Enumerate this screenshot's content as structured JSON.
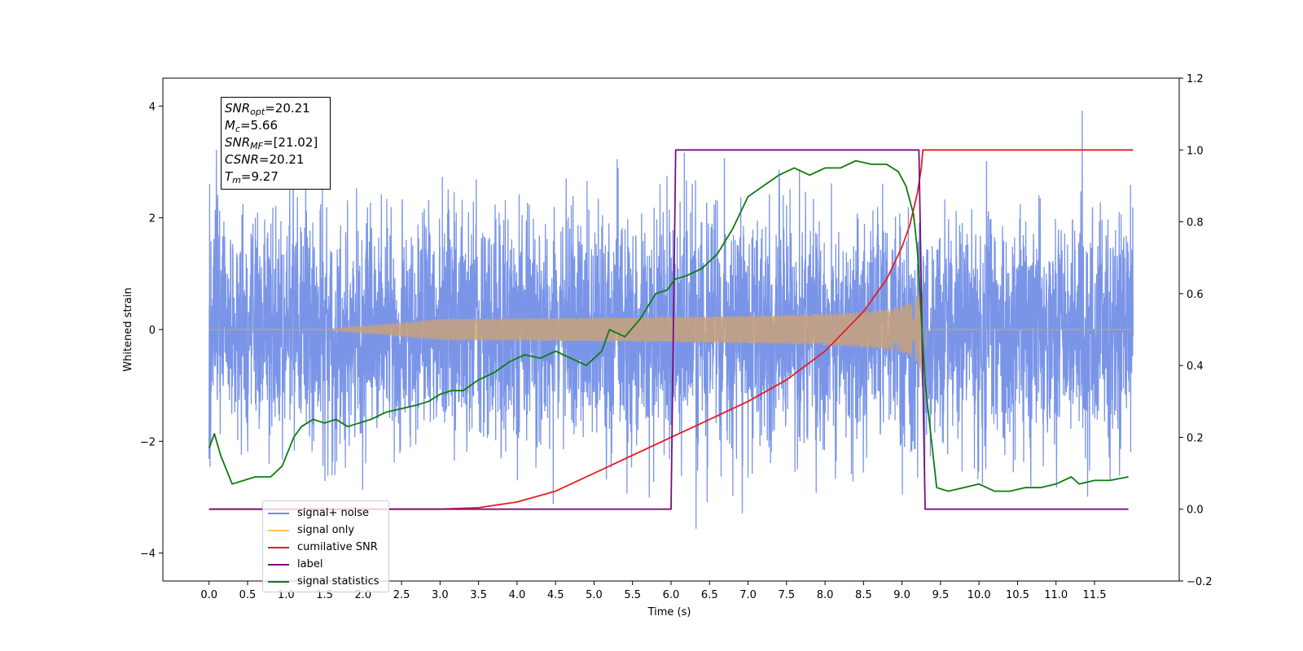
{
  "chart_data": {
    "type": "line",
    "xlabel": "Time (s)",
    "ylabel": "Whitened strain",
    "xlim": [
      -0.6,
      12.6
    ],
    "ylim": [
      -4.5,
      4.5
    ],
    "ylim_right": [
      -0.2,
      1.2
    ],
    "x_ticks": [
      "0.0",
      "0.5",
      "1.0",
      "1.5",
      "2.0",
      "2.5",
      "3.0",
      "3.5",
      "4.0",
      "4.5",
      "5.0",
      "5.5",
      "6.0",
      "6.5",
      "7.0",
      "7.5",
      "8.0",
      "8.5",
      "9.0",
      "9.5",
      "10.0",
      "10.5",
      "11.0",
      "11.5"
    ],
    "y_ticks": [
      "4",
      "2",
      "0",
      "−2",
      "−4"
    ],
    "y_ticks_right": [
      "1.2",
      "1.0",
      "0.8",
      "0.6",
      "0.4",
      "0.2",
      "0.0",
      "−0.2"
    ],
    "grid": false,
    "legend_position": "lower-left",
    "annotation": {
      "snr_opt": "=20.21",
      "mc": "=5.66",
      "snr_mf": "=[21.02]",
      "csnr": "=20.21",
      "tm": "=9.27"
    },
    "series": [
      {
        "name": "signal+ noise",
        "color": "#6f8ce6",
        "axis": "left",
        "noise_amplitude_sigma": 1.0,
        "x_range": [
          0.0,
          12.0
        ]
      },
      {
        "name": "signal only",
        "color": "#ffb64d",
        "axis": "left",
        "chirp_start": 3.0,
        "merger_time": 9.27,
        "peak_amplitude": 1.2
      },
      {
        "name": "cumilative SNR",
        "color": "#e81c1c",
        "axis": "right",
        "x": [
          0.0,
          3.0,
          3.5,
          4.0,
          4.5,
          5.0,
          5.5,
          6.0,
          6.5,
          7.0,
          7.5,
          8.0,
          8.5,
          8.8,
          9.0,
          9.1,
          9.2,
          9.25,
          9.27,
          9.3,
          12.0
        ],
        "y": [
          0.0,
          0.0,
          0.004,
          0.02,
          0.05,
          0.1,
          0.15,
          0.2,
          0.25,
          0.3,
          0.36,
          0.44,
          0.55,
          0.64,
          0.73,
          0.79,
          0.88,
          0.95,
          1.0,
          1.0,
          1.0
        ]
      },
      {
        "name": "label",
        "color": "#7b0e80",
        "axis": "right",
        "x": [
          0.0,
          6.0,
          6.06,
          9.22,
          9.3,
          11.94
        ],
        "y": [
          0.0,
          0.0,
          1.0,
          1.0,
          0.0,
          0.0
        ]
      },
      {
        "name": "signal statistics",
        "color": "#0f7a0f",
        "axis": "right",
        "x": [
          0.0,
          0.07,
          0.15,
          0.3,
          0.45,
          0.6,
          0.8,
          0.95,
          1.1,
          1.2,
          1.35,
          1.5,
          1.65,
          1.8,
          1.95,
          2.1,
          2.3,
          2.5,
          2.7,
          2.85,
          3.0,
          3.15,
          3.3,
          3.5,
          3.7,
          3.9,
          4.1,
          4.3,
          4.5,
          4.7,
          4.9,
          5.1,
          5.2,
          5.4,
          5.6,
          5.8,
          5.95,
          6.05,
          6.2,
          6.4,
          6.6,
          6.8,
          7.0,
          7.2,
          7.4,
          7.6,
          7.8,
          8.0,
          8.2,
          8.4,
          8.6,
          8.8,
          8.95,
          9.05,
          9.15,
          9.2,
          9.3,
          9.45,
          9.6,
          9.8,
          10.0,
          10.2,
          10.4,
          10.6,
          10.8,
          11.0,
          11.2,
          11.3,
          11.5,
          11.7,
          11.94
        ],
        "y": [
          0.17,
          0.21,
          0.15,
          0.07,
          0.08,
          0.09,
          0.09,
          0.12,
          0.2,
          0.23,
          0.25,
          0.24,
          0.25,
          0.23,
          0.24,
          0.25,
          0.27,
          0.28,
          0.29,
          0.3,
          0.32,
          0.33,
          0.33,
          0.36,
          0.38,
          0.41,
          0.43,
          0.42,
          0.44,
          0.42,
          0.4,
          0.44,
          0.5,
          0.48,
          0.53,
          0.6,
          0.61,
          0.64,
          0.65,
          0.67,
          0.71,
          0.78,
          0.87,
          0.9,
          0.93,
          0.95,
          0.93,
          0.95,
          0.95,
          0.97,
          0.96,
          0.96,
          0.94,
          0.9,
          0.82,
          0.72,
          0.35,
          0.06,
          0.05,
          0.06,
          0.07,
          0.05,
          0.05,
          0.06,
          0.06,
          0.07,
          0.09,
          0.07,
          0.08,
          0.08,
          0.09
        ]
      }
    ]
  }
}
